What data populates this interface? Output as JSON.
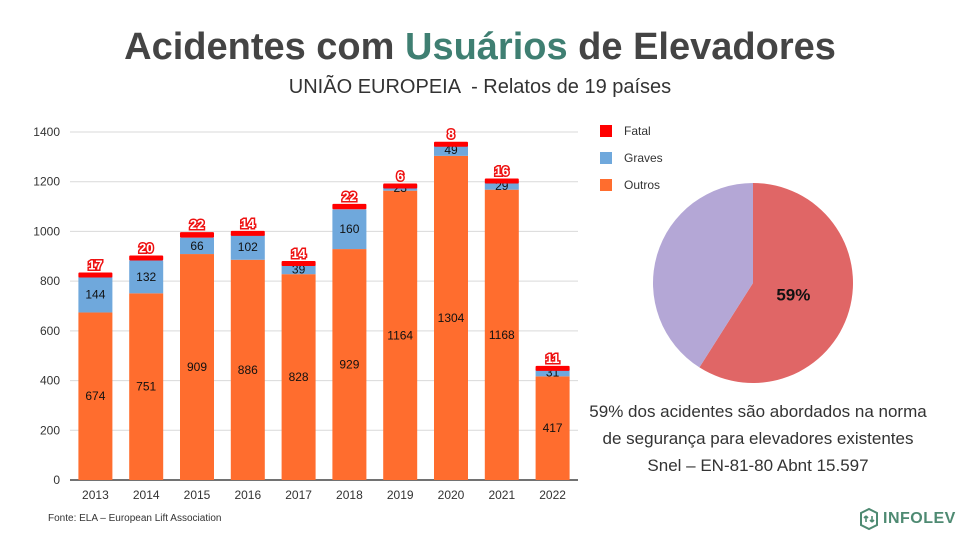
{
  "title": {
    "part1": "Acidentes com ",
    "highlight": "Usuários",
    "part2": " de Elevadores",
    "highlight_color": "#3f7f72"
  },
  "subtitle": "UNIÃO EUROPEIA  - Relatos de 19 países",
  "chart_data": [
    {
      "type": "bar",
      "stacked": true,
      "categories": [
        "2013",
        "2014",
        "2015",
        "2016",
        "2017",
        "2018",
        "2019",
        "2020",
        "2021",
        "2022"
      ],
      "series": [
        {
          "name": "Outros",
          "color": "#ff6d2e",
          "values": [
            674,
            751,
            909,
            886,
            828,
            929,
            1164,
            1304,
            1168,
            417
          ]
        },
        {
          "name": "Graves",
          "color": "#6fa8dc",
          "values": [
            144,
            132,
            66,
            102,
            39,
            160,
            23,
            49,
            29,
            31
          ]
        },
        {
          "name": "Fatal",
          "color": "#ff0000",
          "values": [
            17,
            20,
            22,
            14,
            14,
            22,
            6,
            8,
            16,
            11
          ]
        }
      ],
      "yticks": [
        0,
        200,
        400,
        600,
        800,
        1000,
        1200,
        1400
      ],
      "ylim": [
        0,
        1400
      ],
      "grid": true,
      "legend": "right"
    },
    {
      "type": "pie",
      "slices": [
        {
          "value": 59,
          "label": "59%",
          "color": "#e06666"
        },
        {
          "value": 41,
          "label": "",
          "color": "#b4a7d6"
        }
      ]
    }
  ],
  "note": "59% dos acidentes são abordados na norma de segurança para elevadores existentes Snel – EN-81-80 Abnt 15.597",
  "source": "Fonte: ELA – European Lift Association",
  "logo": {
    "text": "INFOLEV",
    "icon": "infolev-logo-icon",
    "color": "#4e8a72"
  }
}
